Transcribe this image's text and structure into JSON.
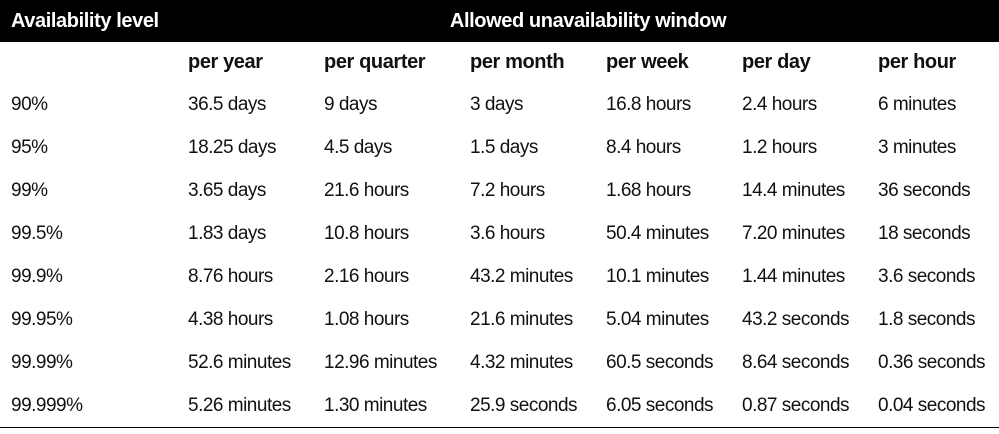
{
  "header": {
    "availability_label": "Availability level",
    "window_label": "Allowed unavailability window",
    "columns": [
      "per year",
      "per quarter",
      "per month",
      "per week",
      "per day",
      "per hour"
    ]
  },
  "rows": [
    {
      "level": "90%",
      "values": [
        "36.5 days",
        "9 days",
        "3 days",
        "16.8 hours",
        "2.4 hours",
        "6 minutes"
      ]
    },
    {
      "level": "95%",
      "values": [
        "18.25 days",
        "4.5 days",
        "1.5 days",
        "8.4 hours",
        "1.2 hours",
        "3 minutes"
      ]
    },
    {
      "level": "99%",
      "values": [
        "3.65 days",
        "21.6 hours",
        "7.2 hours",
        "1.68 hours",
        "14.4 minutes",
        "36 seconds"
      ]
    },
    {
      "level": "99.5%",
      "values": [
        "1.83 days",
        "10.8 hours",
        "3.6 hours",
        "50.4 minutes",
        "7.20 minutes",
        "18 seconds"
      ]
    },
    {
      "level": "99.9%",
      "values": [
        "8.76 hours",
        "2.16 hours",
        "43.2 minutes",
        "10.1 minutes",
        "1.44 minutes",
        "3.6 seconds"
      ]
    },
    {
      "level": "99.95%",
      "values": [
        "4.38 hours",
        "1.08 hours",
        "21.6 minutes",
        "5.04 minutes",
        "43.2 seconds",
        "1.8 seconds"
      ]
    },
    {
      "level": "99.99%",
      "values": [
        "52.6 minutes",
        "12.96 minutes",
        "4.32 minutes",
        "60.5 seconds",
        "8.64 seconds",
        "0.36 seconds"
      ]
    },
    {
      "level": "99.999%",
      "values": [
        "5.26 minutes",
        "1.30 minutes",
        "25.9 seconds",
        "6.05 seconds",
        "0.87 seconds",
        "0.04 seconds"
      ]
    }
  ]
}
